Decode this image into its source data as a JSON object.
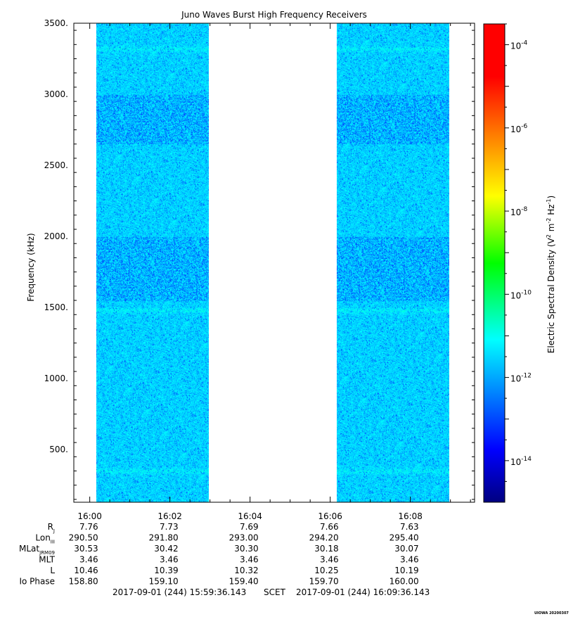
{
  "chart_data": {
    "type": "heatmap",
    "title": "Juno Waves Burst High Frequency Receivers",
    "ylabel": "Frequency (kHz)",
    "ylim": [
      130,
      3500
    ],
    "yticks": [
      500,
      1000,
      1500,
      2000,
      2500,
      3000,
      3500
    ],
    "ytick_labels": [
      "500.",
      "1000.",
      "1500.",
      "2000.",
      "2500.",
      "3000.",
      "3500."
    ],
    "xlim": [
      "15:59:36.143",
      "16:09:36.143"
    ],
    "xticks": [
      "16:00",
      "16:02",
      "16:04",
      "16:06",
      "16:08"
    ],
    "data_blocks": [
      {
        "start": "16:00:10",
        "end": "16:02:58"
      },
      {
        "start": "16:06:10",
        "end": "16:08:58"
      }
    ],
    "background_level_exp": -11.5,
    "bands_kHz": [
      {
        "freq": 350,
        "exp": -11.2
      },
      {
        "freq": 1480,
        "exp": -11.2
      },
      {
        "freq": 3320,
        "exp": -11.2
      },
      {
        "freq": 3150,
        "exp": -11.5
      },
      {
        "freq": 1080,
        "exp": -11.6
      },
      {
        "freq": 2200,
        "exp": -11.6
      }
    ],
    "colorbar": {
      "label_prefix": "Electric Spectral Density (",
      "label_units": [
        "V",
        "2",
        " m",
        "-2",
        " Hz",
        "-1",
        ")"
      ],
      "exp_range": [
        -15,
        -3.5
      ],
      "ticks": [
        {
          "base": "10",
          "exp": "-4",
          "value": -4
        },
        {
          "base": "10",
          "exp": "-6",
          "value": -6
        },
        {
          "base": "10",
          "exp": "-8",
          "value": -8
        },
        {
          "base": "10",
          "exp": "-10",
          "value": -10
        },
        {
          "base": "10",
          "exp": "-12",
          "value": -12
        },
        {
          "base": "10",
          "exp": "-14",
          "value": -14
        }
      ]
    },
    "ephemeris": {
      "row_labels": [
        "R",
        "Lon",
        "MLat",
        "MLT",
        "L",
        "Io Phase"
      ],
      "row_subscripts": [
        "J",
        "III",
        "JRM09",
        "",
        "",
        ""
      ],
      "rows": [
        [
          "7.76",
          "7.73",
          "7.69",
          "7.66",
          "7.63"
        ],
        [
          "290.50",
          "291.80",
          "293.00",
          "294.20",
          "295.40"
        ],
        [
          "30.53",
          "30.42",
          "30.30",
          "30.18",
          "30.07"
        ],
        [
          "3.46",
          "3.46",
          "3.46",
          "3.46",
          "3.46"
        ],
        [
          "10.46",
          "10.39",
          "10.32",
          "10.25",
          "10.19"
        ],
        [
          "158.80",
          "159.10",
          "159.40",
          "159.70",
          "160.00"
        ]
      ]
    },
    "time_range_start": "2017-09-01 (244) 15:59:36.143",
    "time_range_mid": "SCET",
    "time_range_end": "2017-09-01 (244) 16:09:36.143",
    "footer_tag": "UIOWA 20200307"
  }
}
